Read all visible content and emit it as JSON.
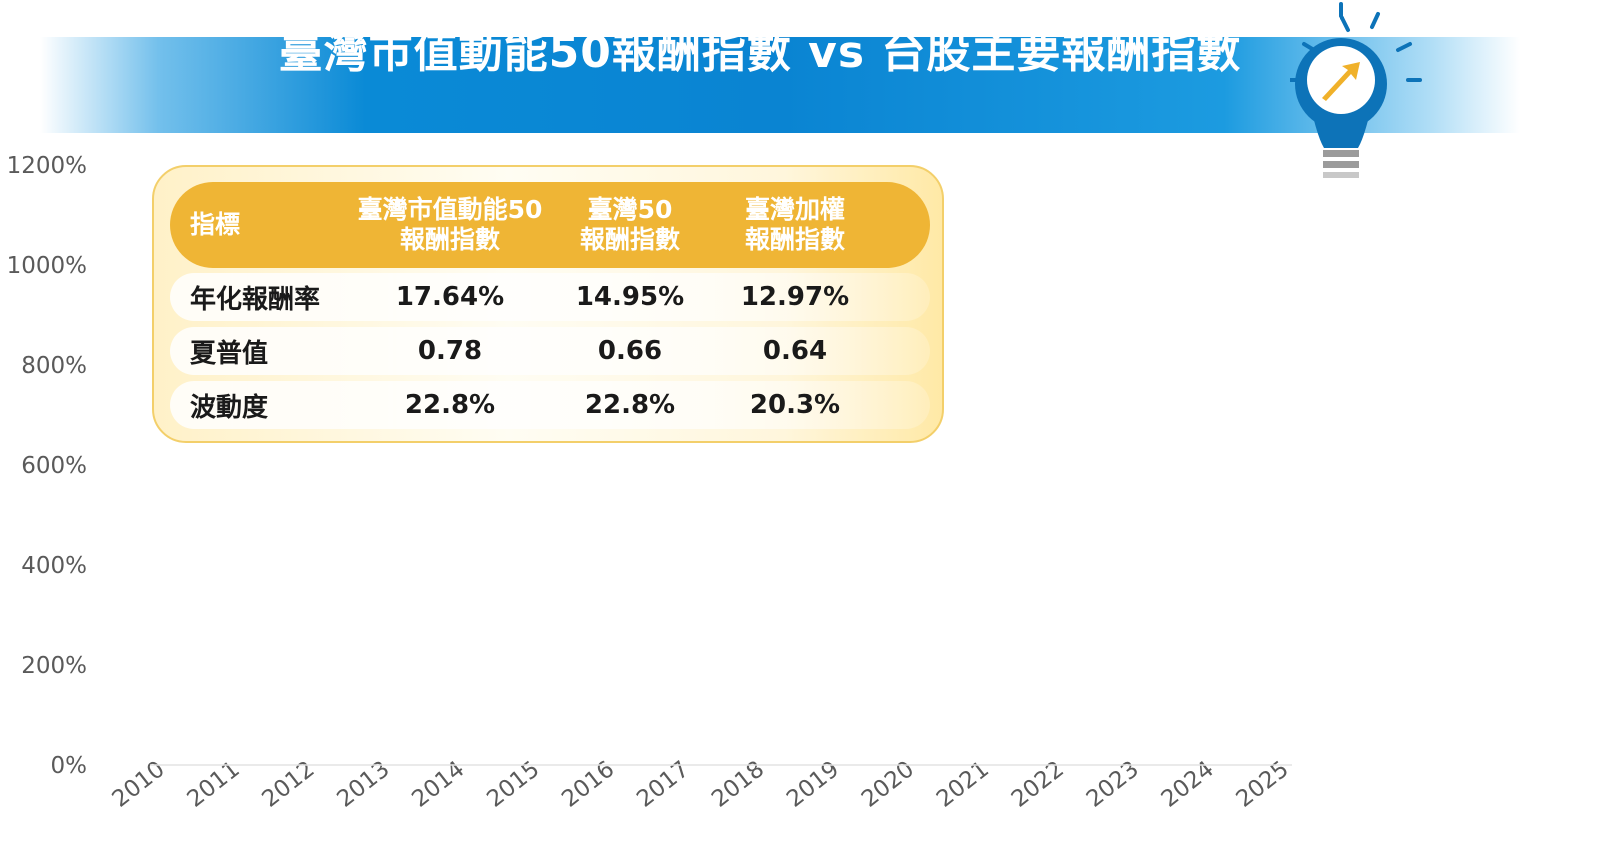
{
  "title": "臺灣市值動能50報酬指數 vs 台股主要報酬指數",
  "colors": {
    "banner": "#0a84d2",
    "table_header": "#efb535",
    "bulb_blue": "#0d73b8",
    "arrow_gold": "#f0b12a"
  },
  "icons": [
    "light-bulb-icon",
    "up-arrow-icon"
  ],
  "chart_data": {
    "type": "line",
    "title": "臺灣市值動能50報酬指數 vs 台股主要報酬指數",
    "categories": [
      "2010",
      "2011",
      "2012",
      "2013",
      "2014",
      "2015",
      "2016",
      "2017",
      "2018",
      "2019",
      "2020",
      "2021",
      "2022",
      "2023",
      "2024",
      "2025"
    ],
    "series": [],
    "y_ticks": [
      "0%",
      "200%",
      "400%",
      "600%",
      "800%",
      "1000%",
      "1200%"
    ],
    "ylim": [
      0,
      1200
    ],
    "ylabel": "",
    "xlabel": "",
    "grid": false
  },
  "table": {
    "headers": [
      [
        "指標"
      ],
      [
        "臺灣市值動能50",
        "報酬指數"
      ],
      [
        "臺灣50",
        "報酬指數"
      ],
      [
        "臺灣加權",
        "報酬指數"
      ]
    ],
    "rows": [
      {
        "label": "年化報酬率",
        "values": [
          "17.64%",
          "14.95%",
          "12.97%"
        ]
      },
      {
        "label": "夏普值",
        "values": [
          "0.78",
          "0.66",
          "0.64"
        ]
      },
      {
        "label": "波動度",
        "values": [
          "22.8%",
          "22.8%",
          "20.3%"
        ]
      }
    ]
  }
}
